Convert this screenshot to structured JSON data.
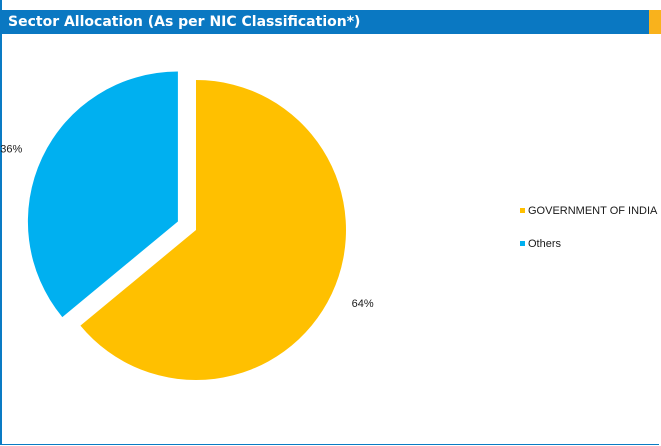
{
  "header": {
    "title": "Sector Allocation (As per NIC Classification*)"
  },
  "colors": {
    "header_bg": "#0a78c2",
    "header_accent": "#f9b21c"
  },
  "chart_data": {
    "type": "pie",
    "title": "Sector Allocation (As per NIC Classification*)",
    "legend_position": "right",
    "slices": [
      {
        "name": "GOVERNMENT OF INDIA",
        "value": 64,
        "label": "64%",
        "color": "#ffc000",
        "exploded": false
      },
      {
        "name": "Others",
        "value": 36,
        "label": "36%",
        "color": "#00b0f0",
        "exploded": true
      }
    ]
  }
}
